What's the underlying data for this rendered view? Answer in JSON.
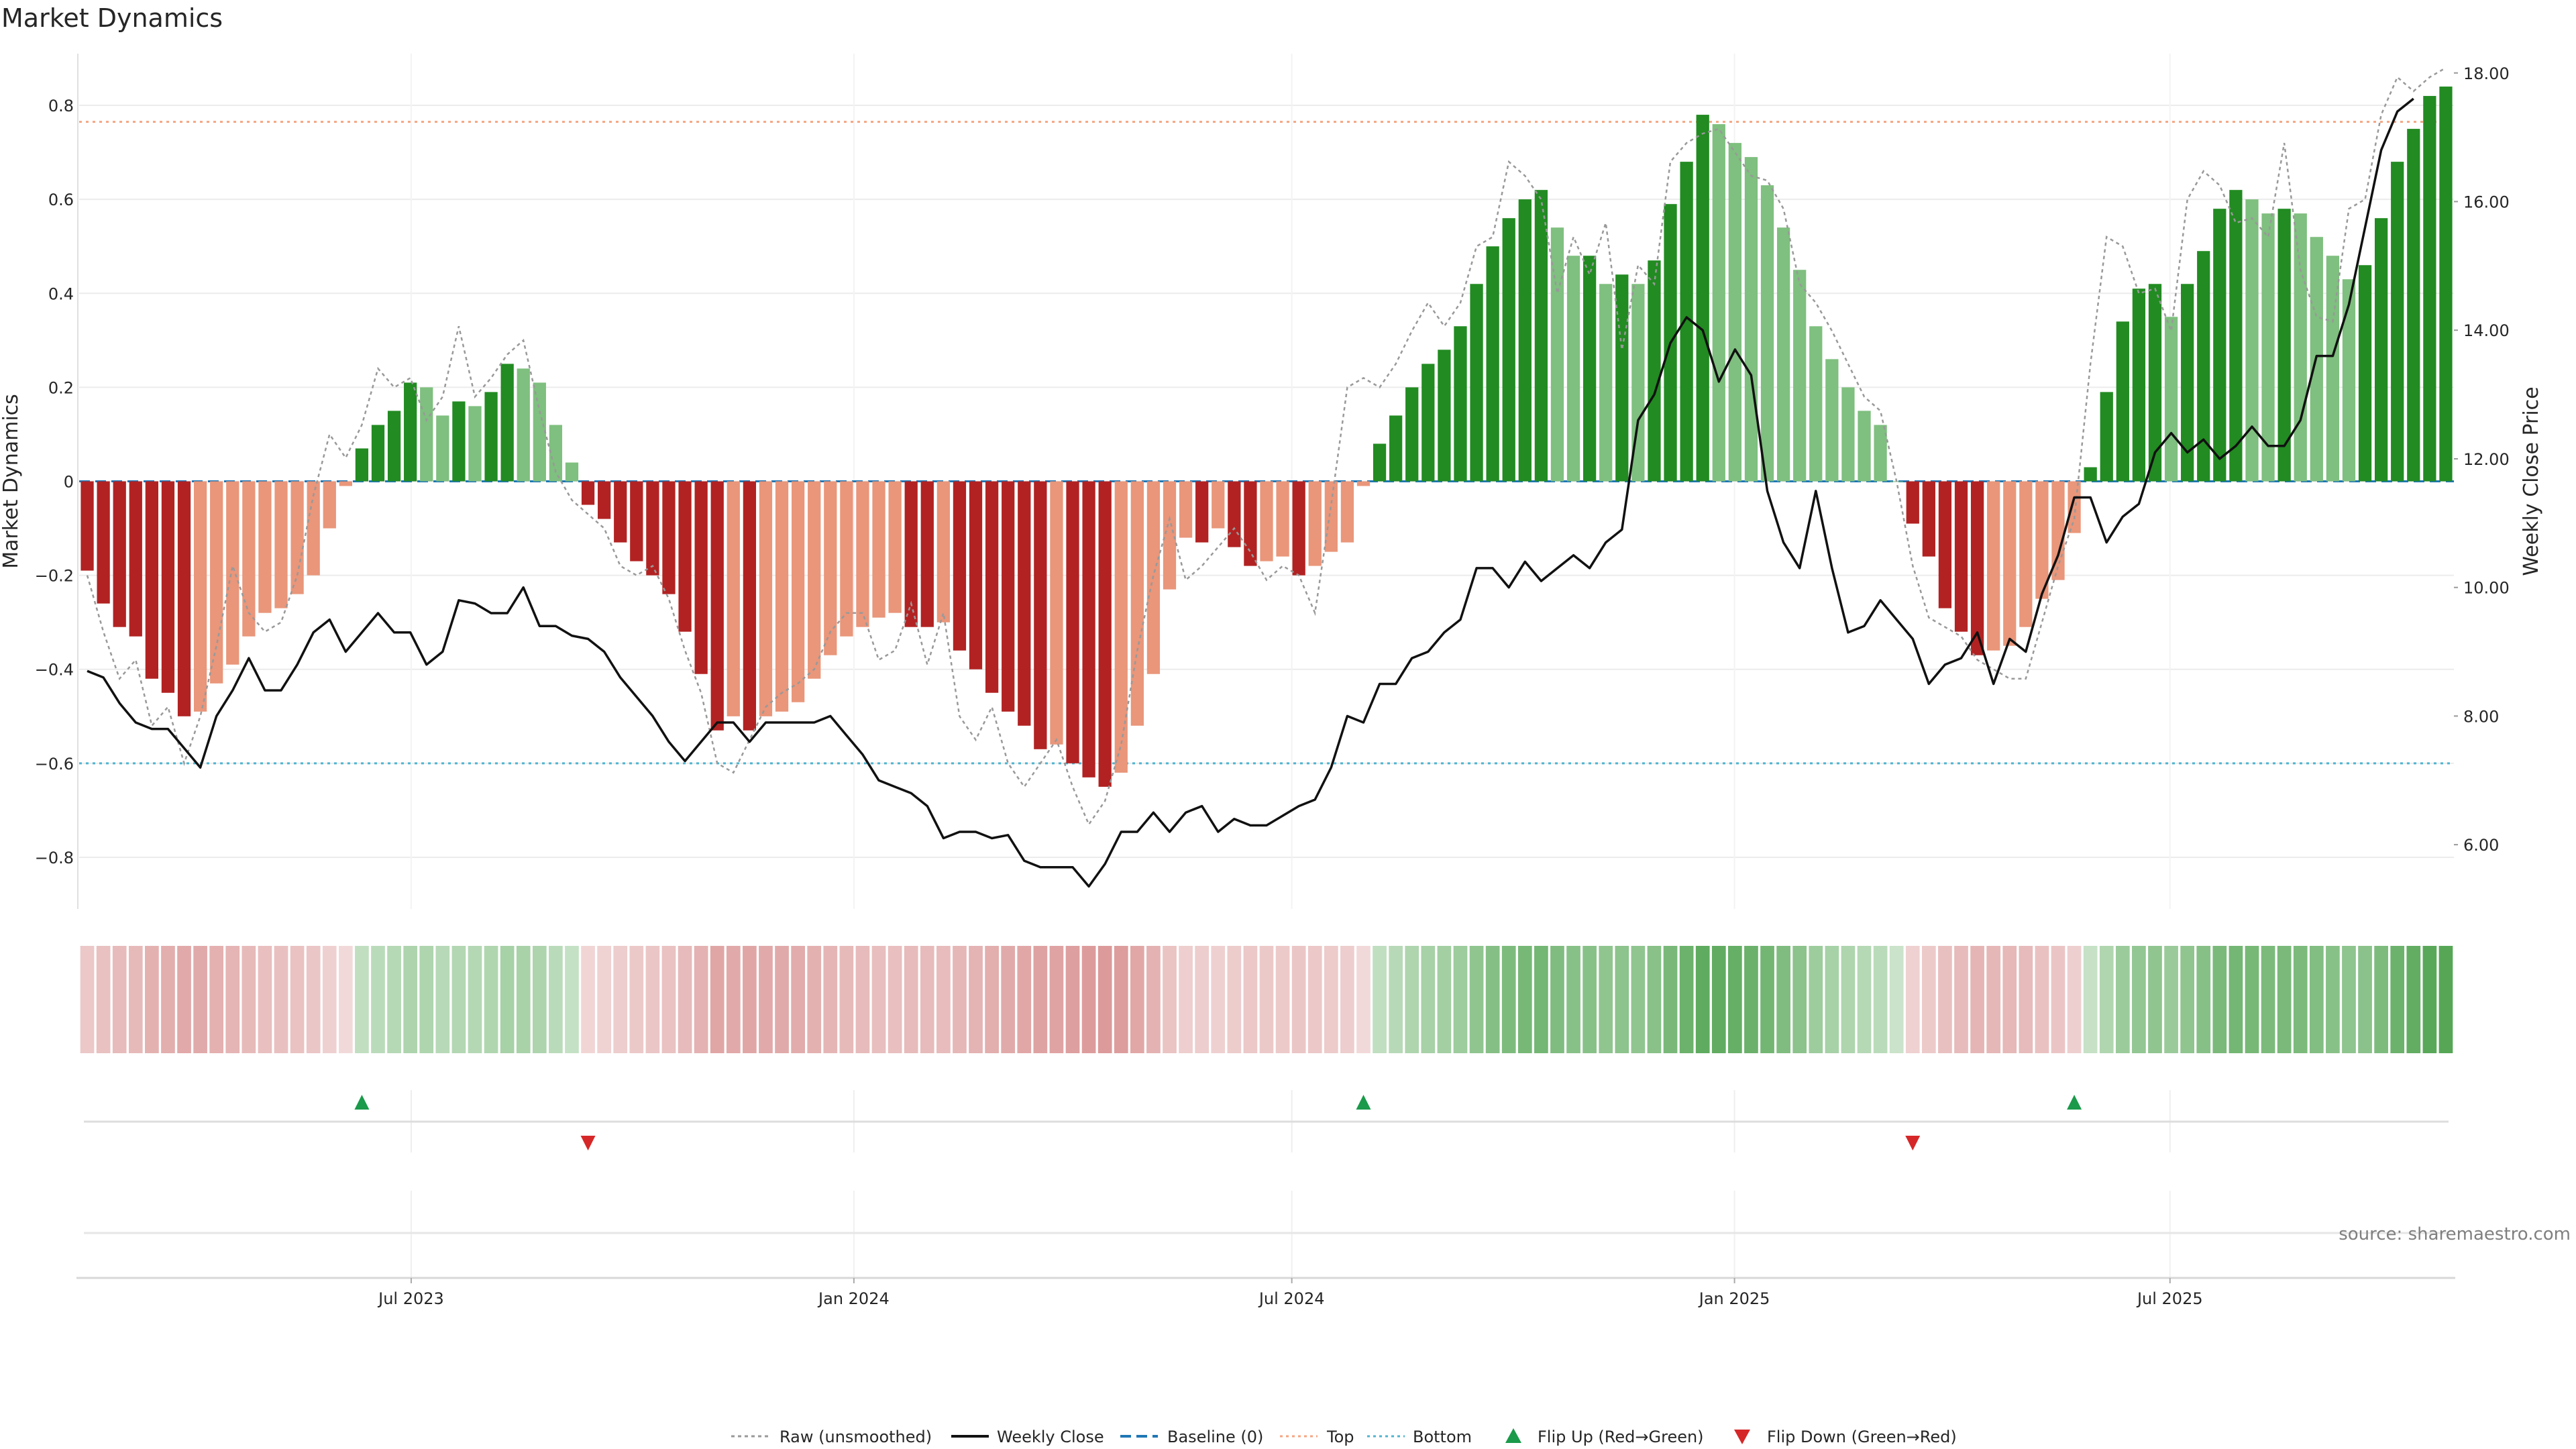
{
  "chart_data": {
    "type": "bar",
    "title": "Market Dynamics",
    "ylabel_left": "Market Dynamics",
    "ylabel_right": "Weekly Close Price",
    "left_ylim": [
      -0.91,
      0.91
    ],
    "right_ylim": [
      5.0,
      18.3
    ],
    "left_ticks": [
      -0.8,
      -0.6,
      -0.4,
      -0.2,
      0,
      0.2,
      0.4,
      0.6,
      0.8
    ],
    "left_tick_labels": [
      "−0.8",
      "−0.6",
      "−0.4",
      "−0.2",
      "0",
      "0.2",
      "0.4",
      "0.6",
      "0.8"
    ],
    "right_ticks": [
      6,
      8,
      10,
      12,
      14,
      16,
      18
    ],
    "right_tick_labels": [
      "6.00",
      "8.00",
      "10.00",
      "12.00",
      "14.00",
      "16.00",
      "18.00"
    ],
    "x_start": "2023-02-13",
    "x_end": "2025-10-27",
    "x_ticks": [
      "2023-07-01",
      "2024-01-01",
      "2024-07-01",
      "2025-01-01",
      "2025-07-01"
    ],
    "x_tick_labels": [
      "Jul 2023",
      "Jan 2024",
      "Jul 2024",
      "Jan 2025",
      "Jul 2025"
    ],
    "top_line": 0.765,
    "bottom_line": -0.6,
    "baseline": 0,
    "grid": true,
    "legend_position": "bottom-center",
    "colors": {
      "strong_green": "#228b22",
      "light_green": "#7fbf7f",
      "strong_red": "#b22222",
      "light_red": "#e9967a",
      "top_line": "#f4a582",
      "bottom_line": "#4fb5d0",
      "baseline": "#1f77b4",
      "raw": "#999999",
      "close": "#111111",
      "flip_up": "#1a9a4a",
      "flip_down": "#d62728"
    },
    "series": [
      {
        "name": "Market Dynamics",
        "values": [
          -0.19,
          -0.26,
          -0.31,
          -0.33,
          -0.42,
          -0.45,
          -0.5,
          -0.49,
          -0.43,
          -0.39,
          -0.33,
          -0.28,
          -0.27,
          -0.24,
          -0.2,
          -0.1,
          -0.01,
          0.07,
          0.12,
          0.15,
          0.21,
          0.2,
          0.14,
          0.17,
          0.16,
          0.19,
          0.25,
          0.24,
          0.21,
          0.12,
          0.04,
          -0.05,
          -0.08,
          -0.13,
          -0.17,
          -0.2,
          -0.24,
          -0.32,
          -0.41,
          -0.53,
          -0.5,
          -0.53,
          -0.5,
          -0.49,
          -0.47,
          -0.42,
          -0.37,
          -0.33,
          -0.31,
          -0.29,
          -0.28,
          -0.31,
          -0.31,
          -0.3,
          -0.36,
          -0.4,
          -0.45,
          -0.49,
          -0.52,
          -0.57,
          -0.56,
          -0.6,
          -0.63,
          -0.65,
          -0.62,
          -0.52,
          -0.41,
          -0.23,
          -0.12,
          -0.13,
          -0.1,
          -0.14,
          -0.18,
          -0.17,
          -0.16,
          -0.2,
          -0.18,
          -0.15,
          -0.13,
          -0.01,
          0.08,
          0.14,
          0.2,
          0.25,
          0.28,
          0.33,
          0.42,
          0.5,
          0.56,
          0.6,
          0.62,
          0.54,
          0.48,
          0.48,
          0.42,
          0.44,
          0.42,
          0.47,
          0.59,
          0.68,
          0.78,
          0.76,
          0.72,
          0.69,
          0.63,
          0.54,
          0.45,
          0.33,
          0.26,
          0.2,
          0.15,
          0.12,
          0.0,
          -0.09,
          -0.16,
          -0.27,
          -0.32,
          -0.37,
          -0.36,
          -0.35,
          -0.31,
          -0.25,
          -0.21,
          -0.11,
          0.03,
          0.19,
          0.34,
          0.41,
          0.42,
          0.35,
          0.42,
          0.49,
          0.58,
          0.62,
          0.6,
          0.57,
          0.58,
          0.57,
          0.52,
          0.48,
          0.43,
          0.46,
          0.56,
          0.68,
          0.75,
          0.82,
          0.84
        ]
      },
      {
        "name": "Raw (unsmoothed)",
        "values": [
          -0.2,
          -0.32,
          -0.42,
          -0.38,
          -0.52,
          -0.48,
          -0.6,
          -0.5,
          -0.35,
          -0.18,
          -0.28,
          -0.32,
          -0.3,
          -0.2,
          -0.03,
          0.1,
          0.05,
          0.12,
          0.24,
          0.2,
          0.22,
          0.13,
          0.18,
          0.33,
          0.18,
          0.22,
          0.27,
          0.3,
          0.15,
          0.02,
          -0.04,
          -0.07,
          -0.1,
          -0.18,
          -0.2,
          -0.18,
          -0.25,
          -0.36,
          -0.45,
          -0.6,
          -0.62,
          -0.55,
          -0.48,
          -0.45,
          -0.43,
          -0.4,
          -0.32,
          -0.28,
          -0.28,
          -0.38,
          -0.36,
          -0.26,
          -0.39,
          -0.28,
          -0.5,
          -0.55,
          -0.48,
          -0.6,
          -0.65,
          -0.6,
          -0.55,
          -0.65,
          -0.73,
          -0.68,
          -0.56,
          -0.36,
          -0.2,
          -0.08,
          -0.21,
          -0.18,
          -0.14,
          -0.1,
          -0.15,
          -0.21,
          -0.18,
          -0.2,
          -0.28,
          -0.05,
          0.2,
          0.22,
          0.2,
          0.25,
          0.32,
          0.38,
          0.33,
          0.38,
          0.5,
          0.52,
          0.68,
          0.65,
          0.6,
          0.4,
          0.52,
          0.44,
          0.55,
          0.28,
          0.46,
          0.42,
          0.68,
          0.72,
          0.74,
          0.75,
          0.7,
          0.65,
          0.64,
          0.58,
          0.42,
          0.38,
          0.32,
          0.25,
          0.18,
          0.15,
          0.0,
          -0.18,
          -0.29,
          -0.31,
          -0.33,
          -0.38,
          -0.4,
          -0.42,
          -0.42,
          -0.3,
          -0.18,
          -0.08,
          0.25,
          0.52,
          0.5,
          0.4,
          0.41,
          0.32,
          0.6,
          0.66,
          0.63,
          0.55,
          0.56,
          0.52,
          0.72,
          0.45,
          0.35,
          0.34,
          0.58,
          0.6,
          0.78,
          0.86,
          0.83,
          0.86,
          0.88
        ]
      },
      {
        "name": "Weekly Close",
        "values": [
          8.7,
          8.6,
          8.2,
          7.9,
          7.8,
          7.8,
          7.5,
          7.2,
          8.0,
          8.4,
          8.9,
          8.4,
          8.4,
          8.8,
          9.3,
          9.5,
          9.0,
          9.3,
          9.6,
          9.3,
          9.3,
          8.8,
          9.0,
          9.8,
          9.75,
          9.6,
          9.6,
          10.0,
          9.4,
          9.4,
          9.25,
          9.2,
          9.0,
          8.6,
          8.3,
          8.0,
          7.6,
          7.3,
          7.6,
          7.9,
          7.9,
          7.6,
          7.9,
          7.9,
          7.9,
          7.9,
          8.0,
          7.7,
          7.4,
          7.0,
          6.9,
          6.8,
          6.6,
          6.1,
          6.2,
          6.2,
          6.1,
          6.15,
          5.75,
          5.65,
          5.65,
          5.65,
          5.35,
          5.7,
          6.2,
          6.2,
          6.5,
          6.2,
          6.5,
          6.6,
          6.2,
          6.4,
          6.3,
          6.3,
          6.45,
          6.6,
          6.7,
          7.2,
          8.0,
          7.9,
          8.5,
          8.5,
          8.9,
          9.0,
          9.3,
          9.5,
          10.3,
          10.3,
          10.0,
          10.4,
          10.1,
          10.3,
          10.5,
          10.3,
          10.7,
          10.9,
          12.6,
          13.0,
          13.8,
          14.2,
          14.0,
          13.2,
          13.7,
          13.3,
          11.5,
          10.7,
          10.3,
          11.5,
          10.3,
          9.3,
          9.4,
          9.8,
          9.5,
          9.2,
          8.5,
          8.8,
          8.9,
          9.3,
          8.5,
          9.2,
          9.0,
          9.9,
          10.5,
          11.4,
          11.4,
          10.7,
          11.1,
          11.3,
          12.1,
          12.4,
          12.1,
          12.3,
          12.0,
          12.2,
          12.5,
          12.2,
          12.2,
          12.6,
          13.6,
          13.6,
          14.4,
          15.6,
          16.8,
          17.4,
          17.6
        ]
      }
    ],
    "flips": [
      {
        "type": "up",
        "week": 17
      },
      {
        "type": "down",
        "week": 31
      },
      {
        "type": "up",
        "week": 79
      },
      {
        "type": "down",
        "week": 113
      },
      {
        "type": "up",
        "week": 123
      }
    ],
    "legend": [
      {
        "label": "Raw (unsmoothed)",
        "style": "dotted-gray"
      },
      {
        "label": "Weekly Close",
        "style": "solid-black"
      },
      {
        "label": "Baseline (0)",
        "style": "dashed-blue"
      },
      {
        "label": "Top",
        "style": "dotted-orange"
      },
      {
        "label": "Bottom",
        "style": "dotted-cyan"
      },
      {
        "label": "Flip Up (Red→Green)",
        "style": "triangle-up-green"
      },
      {
        "label": "Flip Down (Green→Red)",
        "style": "triangle-down-red"
      }
    ],
    "source": "source: sharemaestro.com"
  }
}
